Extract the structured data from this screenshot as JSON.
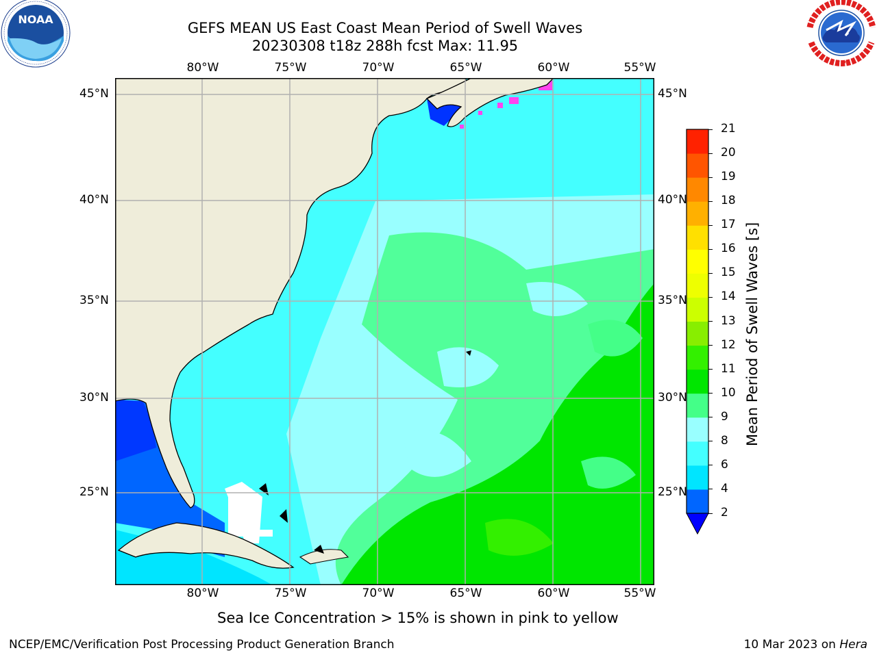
{
  "header": {
    "title_line1": "GEFS MEAN US East Coast Mean Period of Swell Waves",
    "title_line2": "20230308 t18z 288h fcst   Max: 11.95"
  },
  "logos": {
    "left": {
      "name": "noaa-logo",
      "text": "NOAA"
    },
    "right": {
      "name": "nws-logo",
      "ring_text": "NATIONAL WEATHER SERVICE"
    }
  },
  "map": {
    "lon_labels": [
      "80°W",
      "75°W",
      "70°W",
      "65°W",
      "60°W",
      "55°W"
    ],
    "lat_labels": [
      "45°N",
      "40°N",
      "35°N",
      "30°N",
      "25°N"
    ],
    "land_color": "#efedda",
    "coastline_color": "#000000",
    "gridline_color": "#b0b0b0"
  },
  "colorbar": {
    "label": "Mean Period of Swell Waves [s]",
    "ticks": [
      "2",
      "4",
      "6",
      "8",
      "9",
      "10",
      "11",
      "12",
      "13",
      "14",
      "15",
      "16",
      "17",
      "18",
      "19",
      "20",
      "21"
    ],
    "colors": [
      "#0066ff",
      "#00e5ff",
      "#44ffff",
      "#99ffff",
      "#44ff88",
      "#00e600",
      "#33f000",
      "#88ee00",
      "#ccff00",
      "#eeff00",
      "#ffff00",
      "#ffe000",
      "#ffb000",
      "#ff8800",
      "#ff5500",
      "#ff2200"
    ],
    "under_color": "#0000ff"
  },
  "note": "Sea Ice Concentration > 15% is shown in pink to yellow",
  "footer": {
    "left": "NCEP/EMC/Verification Post Processing Product Generation Branch",
    "right_date": "10 Mar 2023 on ",
    "right_machine": "Hera"
  }
}
